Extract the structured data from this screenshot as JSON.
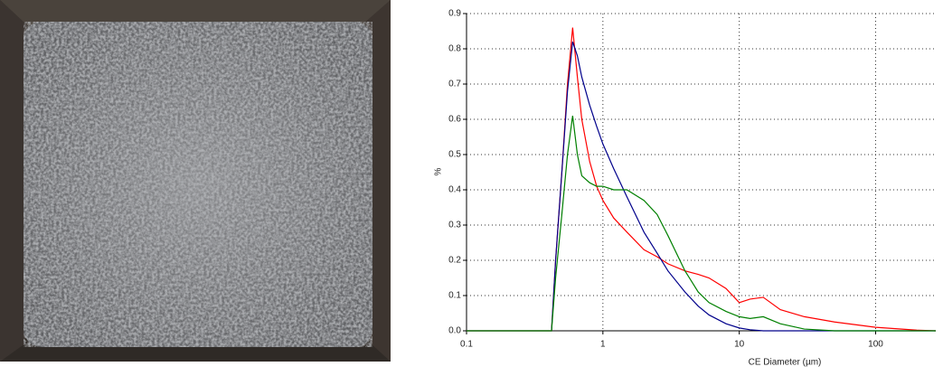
{
  "chart_data": {
    "type": "line",
    "x_label": "CE Diameter (µm)",
    "y_label": "%",
    "x": [
      0.1,
      0.42,
      0.45,
      0.5,
      0.55,
      0.6,
      0.65,
      0.7,
      0.8,
      0.9,
      1,
      1.2,
      1.5,
      2,
      2.5,
      3,
      4,
      5,
      6,
      8,
      10,
      12,
      15,
      20,
      30,
      50,
      100,
      200,
      276
    ],
    "series": [
      {
        "color": "#ff0000",
        "values": [
          0,
          0,
          0.2,
          0.45,
          0.7,
          0.86,
          0.72,
          0.6,
          0.48,
          0.41,
          0.37,
          0.32,
          0.28,
          0.23,
          0.21,
          0.19,
          0.17,
          0.16,
          0.15,
          0.12,
          0.08,
          0.09,
          0.095,
          0.06,
          0.04,
          0.025,
          0.01,
          0.002,
          0
        ]
      },
      {
        "color": "#00008b",
        "values": [
          0,
          0,
          0.2,
          0.45,
          0.68,
          0.82,
          0.78,
          0.72,
          0.64,
          0.58,
          0.53,
          0.46,
          0.38,
          0.28,
          0.22,
          0.17,
          0.11,
          0.07,
          0.045,
          0.02,
          0.008,
          0.003,
          0,
          0,
          0,
          0,
          0,
          0,
          0
        ]
      },
      {
        "color": "#008000",
        "values": [
          0,
          0,
          0.15,
          0.33,
          0.5,
          0.61,
          0.5,
          0.44,
          0.42,
          0.41,
          0.41,
          0.4,
          0.4,
          0.37,
          0.33,
          0.27,
          0.17,
          0.11,
          0.08,
          0.055,
          0.04,
          0.035,
          0.04,
          0.02,
          0.005,
          0,
          0,
          0,
          0
        ]
      }
    ],
    "xlim": [
      0.1,
      276
    ],
    "xticks": [
      0.1,
      1,
      10,
      100
    ],
    "xscale": "log",
    "ylim": [
      0,
      0.9
    ],
    "yticks": [
      {
        "value": 0,
        "label": "0.0"
      },
      0.1,
      0.2,
      0.3,
      0.4,
      0.5,
      0.6,
      0.7,
      0.8,
      0.9
    ],
    "grid": true
  }
}
